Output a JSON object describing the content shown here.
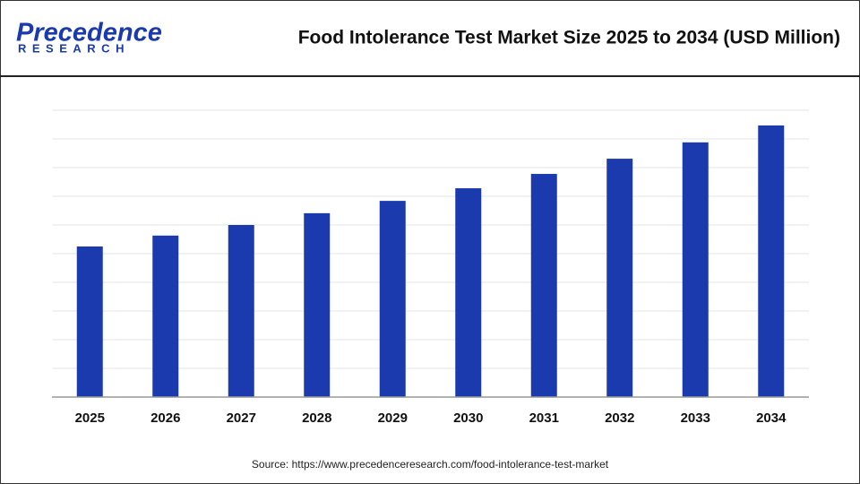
{
  "logo": {
    "name": "Precedence",
    "tagline": "RESEARCH"
  },
  "source": "Source: https://www.precedenceresearch.com/food-intolerance-test-market",
  "chart_data": {
    "type": "bar",
    "title": "Food Intolerance Test Market Size 2025 to 2034 (USD Million)",
    "categories": [
      "2025",
      "2026",
      "2027",
      "2028",
      "2029",
      "2030",
      "2031",
      "2032",
      "2033",
      "2034"
    ],
    "values": [
      5.25,
      5.63,
      6.0,
      6.41,
      6.84,
      7.28,
      7.78,
      8.31,
      8.88,
      9.47
    ],
    "color": "#1a3aad",
    "ylim": [
      0,
      10
    ],
    "yticks": [
      1,
      2,
      3,
      4,
      5,
      6,
      7,
      8,
      9,
      10
    ],
    "grid": true
  }
}
